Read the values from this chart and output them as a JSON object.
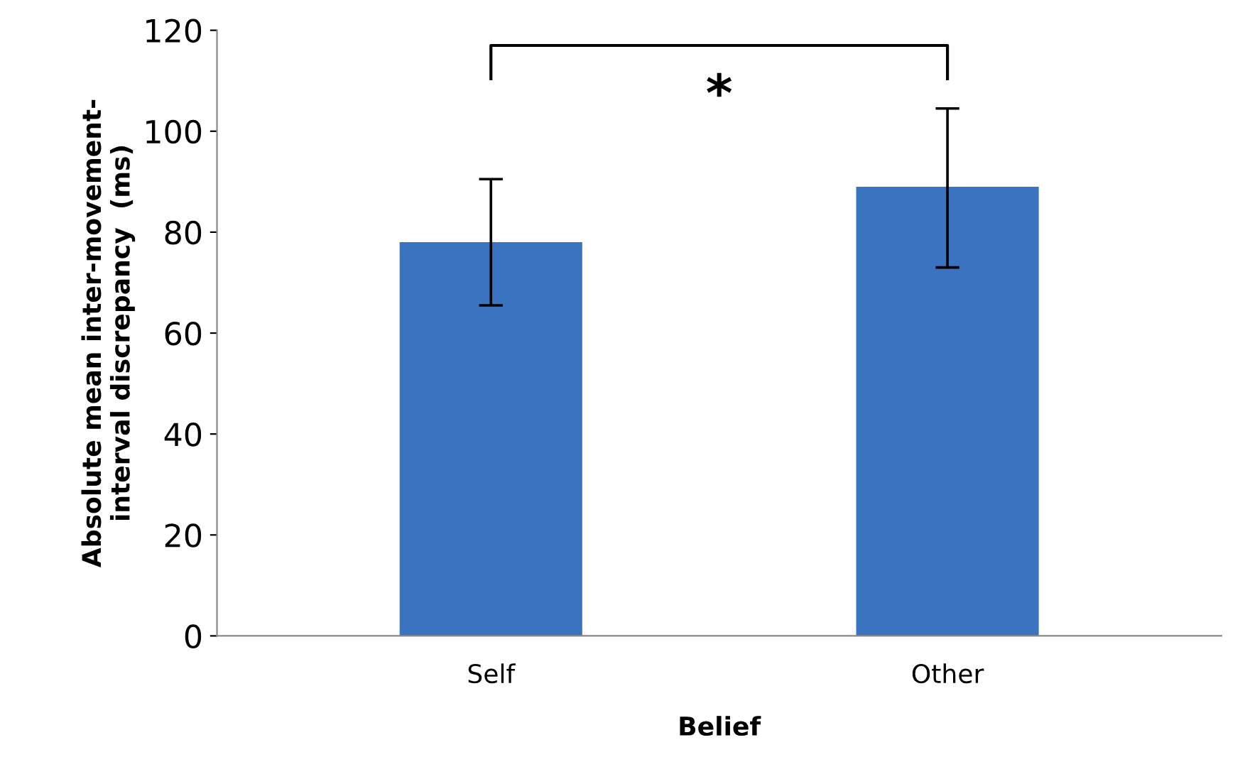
{
  "chart_data": {
    "type": "bar",
    "xlabel": "Belief",
    "ylabel": "Absolute mean inter-movement-\ninterval discrepancy  (ms)",
    "categories": [
      "Self",
      "Other"
    ],
    "values": [
      78,
      89
    ],
    "color": "#3a73c0",
    "errors": [
      [
        65.5,
        90.5
      ],
      [
        73,
        104.5
      ]
    ],
    "ylim": [
      0,
      120
    ],
    "yticks": [
      0,
      20,
      40,
      60,
      80,
      100,
      120
    ],
    "grid": false,
    "annotations": [
      "*"
    ]
  }
}
